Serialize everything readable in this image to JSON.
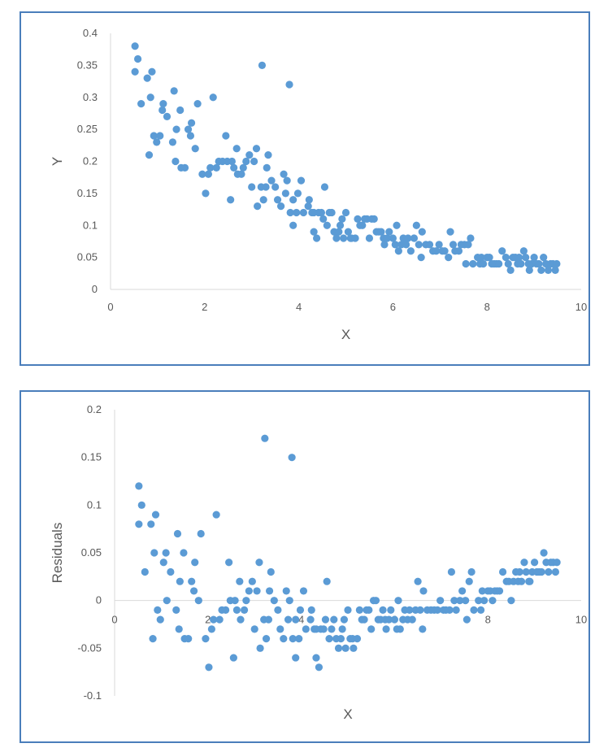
{
  "chart_data": [
    {
      "type": "scatter",
      "title": "",
      "xlabel": "X",
      "ylabel": "Y",
      "xlim": [
        0,
        10
      ],
      "ylim": [
        0,
        0.4
      ],
      "xticks": [
        "0",
        "2",
        "4",
        "6",
        "8",
        "10"
      ],
      "yticks": [
        "0",
        "0.05",
        "0.1",
        "0.15",
        "0.2",
        "0.25",
        "0.3",
        "0.35",
        "0.4"
      ],
      "grid": false,
      "color": "#5b9bd5",
      "points": [
        [
          0.52,
          0.38
        ],
        [
          0.58,
          0.36
        ],
        [
          0.52,
          0.34
        ],
        [
          0.65,
          0.29
        ],
        [
          0.78,
          0.33
        ],
        [
          0.88,
          0.34
        ],
        [
          0.85,
          0.3
        ],
        [
          0.82,
          0.21
        ],
        [
          0.92,
          0.24
        ],
        [
          0.98,
          0.23
        ],
        [
          1.05,
          0.24
        ],
        [
          1.1,
          0.28
        ],
        [
          1.12,
          0.29
        ],
        [
          1.2,
          0.27
        ],
        [
          1.32,
          0.23
        ],
        [
          1.35,
          0.31
        ],
        [
          1.4,
          0.25
        ],
        [
          1.38,
          0.2
        ],
        [
          1.48,
          0.28
        ],
        [
          1.5,
          0.19
        ],
        [
          1.58,
          0.19
        ],
        [
          1.65,
          0.25
        ],
        [
          1.7,
          0.24
        ],
        [
          1.72,
          0.26
        ],
        [
          1.8,
          0.22
        ],
        [
          1.85,
          0.29
        ],
        [
          1.95,
          0.18
        ],
        [
          2.02,
          0.15
        ],
        [
          2.08,
          0.18
        ],
        [
          2.12,
          0.19
        ],
        [
          2.18,
          0.3
        ],
        [
          2.25,
          0.19
        ],
        [
          2.3,
          0.2
        ],
        [
          2.38,
          0.2
        ],
        [
          2.45,
          0.24
        ],
        [
          2.48,
          0.2
        ],
        [
          2.55,
          0.14
        ],
        [
          2.58,
          0.2
        ],
        [
          2.62,
          0.19
        ],
        [
          2.68,
          0.22
        ],
        [
          2.7,
          0.18
        ],
        [
          2.78,
          0.18
        ],
        [
          2.82,
          0.19
        ],
        [
          2.88,
          0.2
        ],
        [
          2.95,
          0.21
        ],
        [
          3.0,
          0.16
        ],
        [
          3.05,
          0.2
        ],
        [
          3.1,
          0.22
        ],
        [
          3.12,
          0.13
        ],
        [
          3.2,
          0.16
        ],
        [
          3.22,
          0.35
        ],
        [
          3.25,
          0.14
        ],
        [
          3.3,
          0.16
        ],
        [
          3.32,
          0.19
        ],
        [
          3.35,
          0.21
        ],
        [
          3.42,
          0.17
        ],
        [
          3.5,
          0.16
        ],
        [
          3.55,
          0.14
        ],
        [
          3.62,
          0.13
        ],
        [
          3.68,
          0.18
        ],
        [
          3.72,
          0.15
        ],
        [
          3.75,
          0.17
        ],
        [
          3.8,
          0.32
        ],
        [
          3.82,
          0.12
        ],
        [
          3.88,
          0.14
        ],
        [
          3.88,
          0.1
        ],
        [
          3.95,
          0.12
        ],
        [
          3.98,
          0.15
        ],
        [
          4.05,
          0.17
        ],
        [
          4.1,
          0.12
        ],
        [
          4.2,
          0.13
        ],
        [
          4.22,
          0.14
        ],
        [
          4.28,
          0.12
        ],
        [
          4.32,
          0.12
        ],
        [
          4.32,
          0.09
        ],
        [
          4.38,
          0.08
        ],
        [
          4.42,
          0.12
        ],
        [
          4.48,
          0.12
        ],
        [
          4.52,
          0.11
        ],
        [
          4.55,
          0.16
        ],
        [
          4.6,
          0.1
        ],
        [
          4.65,
          0.12
        ],
        [
          4.7,
          0.12
        ],
        [
          4.75,
          0.09
        ],
        [
          4.8,
          0.08
        ],
        [
          4.85,
          0.09
        ],
        [
          4.88,
          0.1
        ],
        [
          4.92,
          0.11
        ],
        [
          4.95,
          0.08
        ],
        [
          5.0,
          0.12
        ],
        [
          5.05,
          0.09
        ],
        [
          5.1,
          0.08
        ],
        [
          5.12,
          0.08
        ],
        [
          5.2,
          0.08
        ],
        [
          5.25,
          0.11
        ],
        [
          5.3,
          0.1
        ],
        [
          5.35,
          0.1
        ],
        [
          5.4,
          0.11
        ],
        [
          5.45,
          0.11
        ],
        [
          5.5,
          0.08
        ],
        [
          5.55,
          0.11
        ],
        [
          5.6,
          0.11
        ],
        [
          5.65,
          0.09
        ],
        [
          5.7,
          0.09
        ],
        [
          5.75,
          0.09
        ],
        [
          5.8,
          0.08
        ],
        [
          5.82,
          0.07
        ],
        [
          5.88,
          0.08
        ],
        [
          5.92,
          0.09
        ],
        [
          6.0,
          0.08
        ],
        [
          6.05,
          0.07
        ],
        [
          6.08,
          0.1
        ],
        [
          6.12,
          0.06
        ],
        [
          6.18,
          0.07
        ],
        [
          6.22,
          0.08
        ],
        [
          6.28,
          0.07
        ],
        [
          6.32,
          0.08
        ],
        [
          6.38,
          0.06
        ],
        [
          6.45,
          0.08
        ],
        [
          6.5,
          0.1
        ],
        [
          6.55,
          0.07
        ],
        [
          6.6,
          0.05
        ],
        [
          6.62,
          0.09
        ],
        [
          6.7,
          0.07
        ],
        [
          6.78,
          0.07
        ],
        [
          6.85,
          0.06
        ],
        [
          6.92,
          0.06
        ],
        [
          6.98,
          0.07
        ],
        [
          7.05,
          0.06
        ],
        [
          7.1,
          0.06
        ],
        [
          7.18,
          0.05
        ],
        [
          7.22,
          0.09
        ],
        [
          7.28,
          0.07
        ],
        [
          7.32,
          0.06
        ],
        [
          7.4,
          0.06
        ],
        [
          7.45,
          0.07
        ],
        [
          7.52,
          0.07
        ],
        [
          7.55,
          0.04
        ],
        [
          7.6,
          0.07
        ],
        [
          7.65,
          0.08
        ],
        [
          7.7,
          0.04
        ],
        [
          7.8,
          0.05
        ],
        [
          7.85,
          0.04
        ],
        [
          7.88,
          0.05
        ],
        [
          7.92,
          0.04
        ],
        [
          8.0,
          0.05
        ],
        [
          8.05,
          0.05
        ],
        [
          8.1,
          0.04
        ],
        [
          8.15,
          0.04
        ],
        [
          8.2,
          0.04
        ],
        [
          8.25,
          0.04
        ],
        [
          8.32,
          0.06
        ],
        [
          8.4,
          0.05
        ],
        [
          8.45,
          0.04
        ],
        [
          8.5,
          0.03
        ],
        [
          8.55,
          0.05
        ],
        [
          8.6,
          0.05
        ],
        [
          8.65,
          0.04
        ],
        [
          8.68,
          0.05
        ],
        [
          8.72,
          0.04
        ],
        [
          8.78,
          0.06
        ],
        [
          8.82,
          0.05
        ],
        [
          8.88,
          0.04
        ],
        [
          8.9,
          0.03
        ],
        [
          8.95,
          0.04
        ],
        [
          9.0,
          0.05
        ],
        [
          9.05,
          0.04
        ],
        [
          9.1,
          0.04
        ],
        [
          9.15,
          0.03
        ],
        [
          9.2,
          0.05
        ],
        [
          9.25,
          0.04
        ],
        [
          9.3,
          0.03
        ],
        [
          9.35,
          0.04
        ],
        [
          9.4,
          0.04
        ],
        [
          9.45,
          0.03
        ],
        [
          9.48,
          0.04
        ]
      ]
    },
    {
      "type": "scatter",
      "title": "",
      "xlabel": "X",
      "ylabel": "Residuals",
      "xlim": [
        0,
        10
      ],
      "ylim": [
        -0.1,
        0.2
      ],
      "xticks": [
        "0",
        "2",
        "4",
        "6",
        "8",
        "10"
      ],
      "yticks": [
        "-0.1",
        "-0.05",
        "0",
        "0.05",
        "0.1",
        "0.15",
        "0.2"
      ],
      "grid": false,
      "color": "#5b9bd5",
      "points": [
        [
          0.52,
          0.12
        ],
        [
          0.58,
          0.1
        ],
        [
          0.52,
          0.08
        ],
        [
          0.65,
          0.03
        ],
        [
          0.78,
          0.08
        ],
        [
          0.88,
          0.09
        ],
        [
          0.85,
          0.05
        ],
        [
          0.82,
          -0.04
        ],
        [
          0.92,
          -0.01
        ],
        [
          0.98,
          -0.02
        ],
        [
          1.05,
          0.04
        ],
        [
          1.1,
          0.05
        ],
        [
          1.12,
          0.0
        ],
        [
          1.2,
          0.03
        ],
        [
          1.32,
          -0.01
        ],
        [
          1.35,
          0.07
        ],
        [
          1.4,
          0.02
        ],
        [
          1.38,
          -0.03
        ],
        [
          1.48,
          0.05
        ],
        [
          1.5,
          -0.04
        ],
        [
          1.58,
          -0.04
        ],
        [
          1.65,
          0.02
        ],
        [
          1.7,
          0.01
        ],
        [
          1.72,
          0.04
        ],
        [
          1.8,
          0.0
        ],
        [
          1.85,
          0.07
        ],
        [
          1.95,
          -0.04
        ],
        [
          2.02,
          -0.07
        ],
        [
          2.08,
          -0.03
        ],
        [
          2.12,
          -0.02
        ],
        [
          2.18,
          0.09
        ],
        [
          2.25,
          -0.02
        ],
        [
          2.3,
          -0.01
        ],
        [
          2.38,
          -0.01
        ],
        [
          2.45,
          0.04
        ],
        [
          2.48,
          0.0
        ],
        [
          2.55,
          -0.06
        ],
        [
          2.58,
          0.0
        ],
        [
          2.62,
          -0.01
        ],
        [
          2.68,
          0.02
        ],
        [
          2.7,
          -0.02
        ],
        [
          2.78,
          -0.01
        ],
        [
          2.82,
          0.0
        ],
        [
          2.88,
          0.01
        ],
        [
          2.95,
          0.02
        ],
        [
          3.0,
          -0.03
        ],
        [
          3.05,
          0.01
        ],
        [
          3.1,
          0.04
        ],
        [
          3.12,
          -0.05
        ],
        [
          3.2,
          -0.02
        ],
        [
          3.22,
          0.17
        ],
        [
          3.25,
          -0.04
        ],
        [
          3.3,
          -0.02
        ],
        [
          3.32,
          0.01
        ],
        [
          3.35,
          0.03
        ],
        [
          3.42,
          0.0
        ],
        [
          3.5,
          -0.01
        ],
        [
          3.55,
          -0.03
        ],
        [
          3.62,
          -0.04
        ],
        [
          3.68,
          0.01
        ],
        [
          3.72,
          -0.02
        ],
        [
          3.75,
          0.0
        ],
        [
          3.8,
          0.15
        ],
        [
          3.82,
          -0.04
        ],
        [
          3.88,
          -0.02
        ],
        [
          3.88,
          -0.06
        ],
        [
          3.95,
          -0.04
        ],
        [
          3.98,
          -0.01
        ],
        [
          4.05,
          0.01
        ],
        [
          4.1,
          -0.03
        ],
        [
          4.2,
          -0.02
        ],
        [
          4.22,
          -0.01
        ],
        [
          4.28,
          -0.03
        ],
        [
          4.32,
          -0.03
        ],
        [
          4.32,
          -0.06
        ],
        [
          4.38,
          -0.07
        ],
        [
          4.42,
          -0.03
        ],
        [
          4.48,
          -0.03
        ],
        [
          4.52,
          -0.02
        ],
        [
          4.55,
          0.02
        ],
        [
          4.6,
          -0.04
        ],
        [
          4.65,
          -0.03
        ],
        [
          4.7,
          -0.02
        ],
        [
          4.75,
          -0.04
        ],
        [
          4.8,
          -0.05
        ],
        [
          4.85,
          -0.04
        ],
        [
          4.88,
          -0.03
        ],
        [
          4.92,
          -0.02
        ],
        [
          4.95,
          -0.05
        ],
        [
          5.0,
          -0.01
        ],
        [
          5.05,
          -0.04
        ],
        [
          5.1,
          -0.04
        ],
        [
          5.12,
          -0.05
        ],
        [
          5.2,
          -0.04
        ],
        [
          5.25,
          -0.01
        ],
        [
          5.3,
          -0.02
        ],
        [
          5.35,
          -0.02
        ],
        [
          5.4,
          -0.01
        ],
        [
          5.45,
          -0.01
        ],
        [
          5.5,
          -0.03
        ],
        [
          5.55,
          0.0
        ],
        [
          5.6,
          0.0
        ],
        [
          5.65,
          -0.02
        ],
        [
          5.7,
          -0.02
        ],
        [
          5.75,
          -0.01
        ],
        [
          5.8,
          -0.02
        ],
        [
          5.82,
          -0.03
        ],
        [
          5.88,
          -0.02
        ],
        [
          5.92,
          -0.01
        ],
        [
          6.0,
          -0.02
        ],
        [
          6.05,
          -0.03
        ],
        [
          6.08,
          0.0
        ],
        [
          6.12,
          -0.03
        ],
        [
          6.18,
          -0.02
        ],
        [
          6.22,
          -0.01
        ],
        [
          6.28,
          -0.02
        ],
        [
          6.32,
          -0.01
        ],
        [
          6.38,
          -0.02
        ],
        [
          6.45,
          -0.01
        ],
        [
          6.5,
          0.02
        ],
        [
          6.55,
          -0.01
        ],
        [
          6.6,
          -0.03
        ],
        [
          6.62,
          0.01
        ],
        [
          6.7,
          -0.01
        ],
        [
          6.78,
          -0.01
        ],
        [
          6.85,
          -0.01
        ],
        [
          6.92,
          -0.01
        ],
        [
          6.98,
          0.0
        ],
        [
          7.05,
          -0.01
        ],
        [
          7.1,
          -0.01
        ],
        [
          7.18,
          -0.01
        ],
        [
          7.22,
          0.03
        ],
        [
          7.28,
          0.0
        ],
        [
          7.32,
          -0.01
        ],
        [
          7.4,
          0.0
        ],
        [
          7.45,
          0.01
        ],
        [
          7.52,
          0.0
        ],
        [
          7.55,
          -0.02
        ],
        [
          7.6,
          0.02
        ],
        [
          7.65,
          0.03
        ],
        [
          7.7,
          -0.01
        ],
        [
          7.8,
          0.0
        ],
        [
          7.85,
          -0.01
        ],
        [
          7.88,
          0.01
        ],
        [
          7.92,
          0.0
        ],
        [
          8.0,
          0.01
        ],
        [
          8.05,
          0.01
        ],
        [
          8.1,
          0.0
        ],
        [
          8.15,
          0.01
        ],
        [
          8.2,
          0.01
        ],
        [
          8.25,
          0.01
        ],
        [
          8.32,
          0.03
        ],
        [
          8.4,
          0.02
        ],
        [
          8.45,
          0.02
        ],
        [
          8.5,
          0.0
        ],
        [
          8.55,
          0.02
        ],
        [
          8.6,
          0.03
        ],
        [
          8.65,
          0.02
        ],
        [
          8.68,
          0.03
        ],
        [
          8.72,
          0.02
        ],
        [
          8.78,
          0.04
        ],
        [
          8.82,
          0.03
        ],
        [
          8.88,
          0.02
        ],
        [
          8.9,
          0.02
        ],
        [
          8.95,
          0.03
        ],
        [
          9.0,
          0.04
        ],
        [
          9.05,
          0.03
        ],
        [
          9.1,
          0.03
        ],
        [
          9.15,
          0.03
        ],
        [
          9.2,
          0.05
        ],
        [
          9.25,
          0.04
        ],
        [
          9.3,
          0.03
        ],
        [
          9.35,
          0.04
        ],
        [
          9.4,
          0.04
        ],
        [
          9.45,
          0.03
        ],
        [
          9.48,
          0.04
        ]
      ]
    }
  ]
}
